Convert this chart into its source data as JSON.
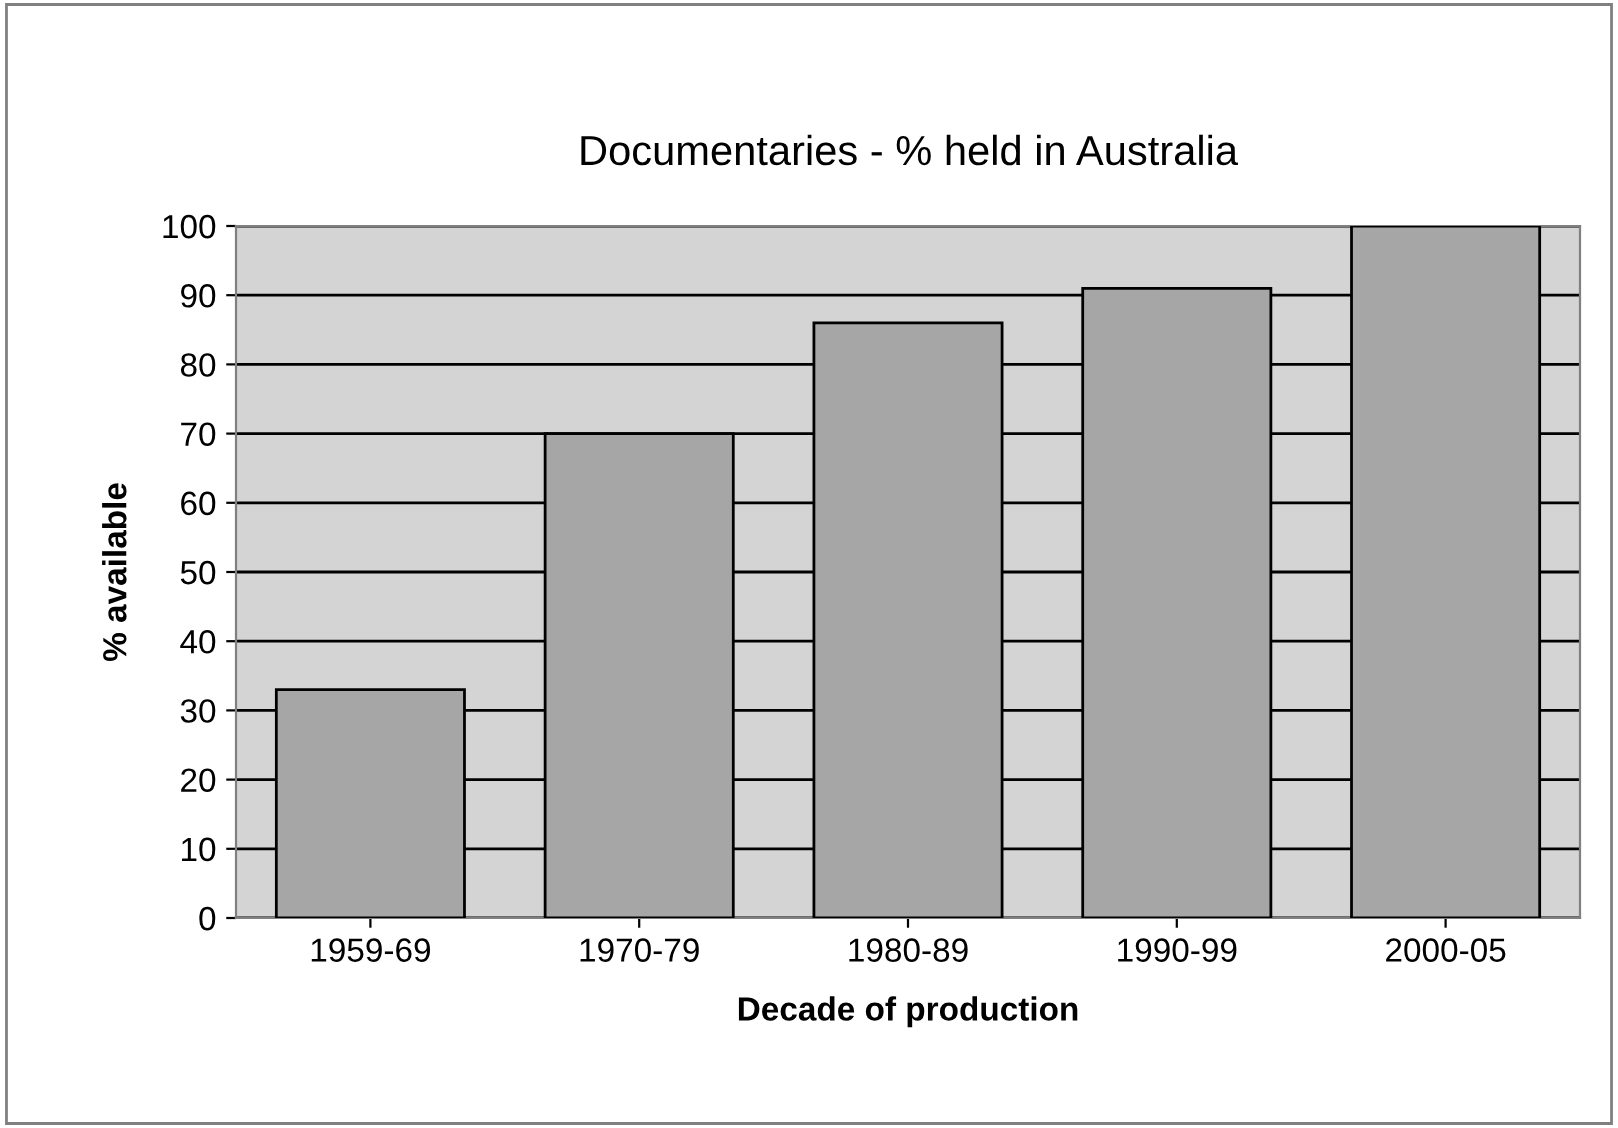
{
  "chart_data": {
    "type": "bar",
    "title": "Documentaries - % held in Australia",
    "xlabel": "Decade of production",
    "ylabel": "% available",
    "categories": [
      "1959-69",
      "1970-79",
      "1980-89",
      "1990-99",
      "2000-05"
    ],
    "values": [
      33,
      70,
      86,
      91,
      100
    ],
    "color": "#a6a6a6",
    "ylim": [
      0,
      100
    ],
    "yticks": [
      0,
      10,
      20,
      30,
      40,
      50,
      60,
      70,
      80,
      90,
      100
    ],
    "grid": "y",
    "legend": false
  }
}
